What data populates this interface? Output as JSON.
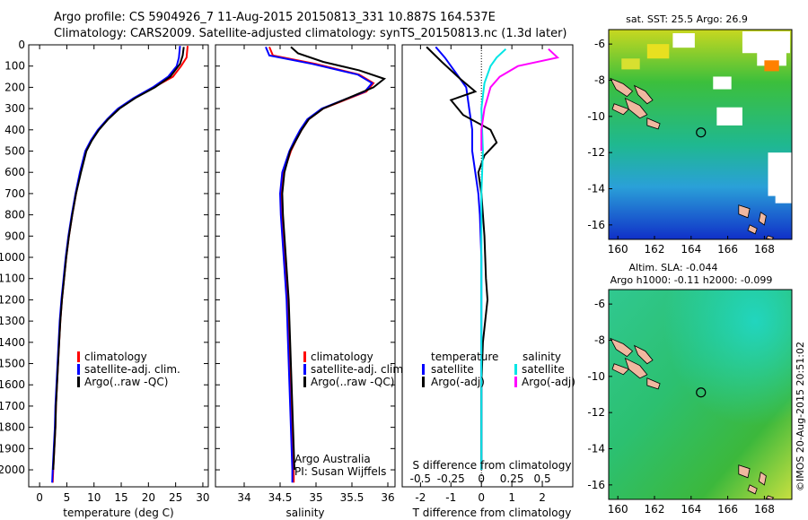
{
  "header": {
    "line1": "Argo profile: CS 5904926_7 11-Aug-2015 20150813_331 10.887S 164.537E",
    "line2": "Climatology: CARS2009. Satellite-adjusted climatology: synTS_20150813.nc (1.3d later)"
  },
  "colors": {
    "climatology": "#ff0000",
    "satellite": "#0000ff",
    "argo": "#000000",
    "sat_salinity": "#00e5e5",
    "argo_salinity": "#ff00ff",
    "coast": "#f0b8a0"
  },
  "chart_data": [
    {
      "id": "temperature",
      "type": "line",
      "xlabel": "temperature (deg C)",
      "xlim": [
        -2,
        31
      ],
      "xticks": [
        0,
        5,
        10,
        15,
        20,
        25,
        30
      ],
      "ylim": [
        2080,
        0
      ],
      "yticks": [
        0,
        100,
        200,
        300,
        400,
        500,
        600,
        700,
        800,
        900,
        1000,
        1100,
        1200,
        1300,
        1400,
        1500,
        1600,
        1700,
        1800,
        1900,
        2000
      ],
      "legend": [
        "climatology",
        "satellite-adj. clim.",
        "Argo(..raw -QC)"
      ],
      "series": [
        {
          "name": "climatology",
          "color": "#ff0000",
          "points": [
            [
              27.2,
              5
            ],
            [
              27.0,
              60
            ],
            [
              26.0,
              100
            ],
            [
              24.5,
              150
            ],
            [
              21.0,
              200
            ],
            [
              17.5,
              250
            ],
            [
              14.5,
              300
            ],
            [
              12.5,
              350
            ],
            [
              10.8,
              400
            ],
            [
              9.5,
              450
            ],
            [
              8.5,
              500
            ],
            [
              7.5,
              600
            ],
            [
              6.7,
              700
            ],
            [
              6.0,
              800
            ],
            [
              5.4,
              900
            ],
            [
              4.9,
              1000
            ],
            [
              4.5,
              1100
            ],
            [
              4.1,
              1200
            ],
            [
              3.8,
              1300
            ],
            [
              3.6,
              1400
            ],
            [
              3.4,
              1500
            ],
            [
              3.2,
              1600
            ],
            [
              3.0,
              1700
            ],
            [
              2.9,
              1800
            ],
            [
              2.7,
              1900
            ],
            [
              2.5,
              2000
            ],
            [
              2.4,
              2060
            ]
          ]
        },
        {
          "name": "satellite-adj. clim.",
          "color": "#0000ff",
          "points": [
            [
              25.8,
              5
            ],
            [
              25.6,
              60
            ],
            [
              25.2,
              100
            ],
            [
              23.6,
              150
            ],
            [
              20.8,
              200
            ],
            [
              17.3,
              250
            ],
            [
              14.4,
              300
            ],
            [
              12.4,
              350
            ],
            [
              10.7,
              400
            ],
            [
              9.4,
              450
            ],
            [
              8.4,
              500
            ],
            [
              7.4,
              600
            ],
            [
              6.6,
              700
            ],
            [
              5.9,
              800
            ],
            [
              5.3,
              900
            ],
            [
              4.8,
              1000
            ],
            [
              4.4,
              1100
            ],
            [
              4.0,
              1200
            ],
            [
              3.7,
              1300
            ],
            [
              3.5,
              1400
            ],
            [
              3.3,
              1500
            ],
            [
              3.1,
              1600
            ],
            [
              2.9,
              1700
            ],
            [
              2.8,
              1800
            ],
            [
              2.6,
              1900
            ],
            [
              2.4,
              2000
            ],
            [
              2.3,
              2060
            ]
          ]
        },
        {
          "name": "Argo(..raw -QC)",
          "color": "#000000",
          "points": [
            [
              26.5,
              10
            ],
            [
              26.3,
              50
            ],
            [
              25.8,
              90
            ],
            [
              24.0,
              150
            ],
            [
              21.2,
              200
            ],
            [
              17.6,
              250
            ],
            [
              14.7,
              300
            ],
            [
              12.6,
              350
            ],
            [
              10.9,
              400
            ],
            [
              9.6,
              450
            ],
            [
              8.6,
              500
            ],
            [
              7.6,
              600
            ],
            [
              6.7,
              700
            ],
            [
              6.0,
              800
            ],
            [
              5.4,
              900
            ],
            [
              4.9,
              1000
            ],
            [
              4.5,
              1100
            ],
            [
              4.1,
              1200
            ],
            [
              3.8,
              1300
            ],
            [
              3.6,
              1400
            ],
            [
              3.4,
              1500
            ],
            [
              3.2,
              1600
            ],
            [
              3.0,
              1700
            ],
            [
              2.9,
              1800
            ],
            [
              2.7,
              1900
            ],
            [
              2.5,
              2000
            ]
          ]
        }
      ]
    },
    {
      "id": "salinity",
      "type": "line",
      "xlabel": "salinity",
      "xlim": [
        33.6,
        36.1
      ],
      "xticks": [
        34,
        34.5,
        35,
        35.5,
        36
      ],
      "ylim": [
        2080,
        0
      ],
      "legend": [
        "climatology",
        "satellite-adj. clim.",
        "Argo(..raw -QC)"
      ],
      "annotation": [
        "Argo Australia",
        "PI: Susan Wijffels"
      ],
      "series": [
        {
          "name": "climatology",
          "color": "#ff0000",
          "points": [
            [
              34.35,
              10
            ],
            [
              34.4,
              50
            ],
            [
              35.0,
              90
            ],
            [
              35.6,
              140
            ],
            [
              35.8,
              180
            ],
            [
              35.7,
              220
            ],
            [
              35.4,
              260
            ],
            [
              35.1,
              300
            ],
            [
              34.9,
              350
            ],
            [
              34.8,
              400
            ],
            [
              34.72,
              450
            ],
            [
              34.65,
              500
            ],
            [
              34.55,
              600
            ],
            [
              34.52,
              700
            ],
            [
              34.53,
              800
            ],
            [
              34.55,
              900
            ],
            [
              34.57,
              1000
            ],
            [
              34.59,
              1100
            ],
            [
              34.61,
              1200
            ],
            [
              34.62,
              1300
            ],
            [
              34.63,
              1400
            ],
            [
              34.64,
              1500
            ],
            [
              34.65,
              1600
            ],
            [
              34.66,
              1700
            ],
            [
              34.67,
              1800
            ],
            [
              34.68,
              1900
            ],
            [
              34.69,
              2000
            ],
            [
              34.69,
              2060
            ]
          ]
        },
        {
          "name": "satellite-adj. clim.",
          "color": "#0000ff",
          "points": [
            [
              34.3,
              10
            ],
            [
              34.35,
              50
            ],
            [
              34.95,
              90
            ],
            [
              35.58,
              140
            ],
            [
              35.78,
              180
            ],
            [
              35.68,
              220
            ],
            [
              35.38,
              260
            ],
            [
              35.08,
              300
            ],
            [
              34.88,
              350
            ],
            [
              34.78,
              400
            ],
            [
              34.7,
              450
            ],
            [
              34.63,
              500
            ],
            [
              34.53,
              600
            ],
            [
              34.5,
              700
            ],
            [
              34.51,
              800
            ],
            [
              34.53,
              900
            ],
            [
              34.55,
              1000
            ],
            [
              34.57,
              1100
            ],
            [
              34.59,
              1200
            ],
            [
              34.6,
              1300
            ],
            [
              34.61,
              1400
            ],
            [
              34.62,
              1500
            ],
            [
              34.63,
              1600
            ],
            [
              34.64,
              1700
            ],
            [
              34.65,
              1800
            ],
            [
              34.66,
              1900
            ],
            [
              34.67,
              2000
            ],
            [
              34.67,
              2060
            ]
          ]
        },
        {
          "name": "Argo(..raw -QC)",
          "color": "#000000",
          "points": [
            [
              34.65,
              10
            ],
            [
              34.75,
              40
            ],
            [
              35.1,
              80
            ],
            [
              35.6,
              120
            ],
            [
              35.95,
              160
            ],
            [
              35.8,
              200
            ],
            [
              35.45,
              250
            ],
            [
              35.1,
              300
            ],
            [
              34.9,
              350
            ],
            [
              34.8,
              400
            ],
            [
              34.72,
              450
            ],
            [
              34.64,
              500
            ],
            [
              34.56,
              600
            ],
            [
              34.53,
              700
            ],
            [
              34.54,
              800
            ],
            [
              34.56,
              900
            ],
            [
              34.58,
              1000
            ],
            [
              34.6,
              1100
            ],
            [
              34.62,
              1200
            ],
            [
              34.63,
              1300
            ],
            [
              34.64,
              1400
            ],
            [
              34.65,
              1500
            ],
            [
              34.66,
              1600
            ],
            [
              34.67,
              1700
            ],
            [
              34.68,
              1800
            ],
            [
              34.69,
              1900
            ],
            [
              34.7,
              2000
            ]
          ]
        }
      ]
    },
    {
      "id": "differences",
      "type": "line",
      "xlabel": "T difference from climatology",
      "xlabel_top": "S difference from climatology",
      "xlim": [
        -2.6,
        3.0
      ],
      "xticks": [
        -2,
        -1,
        0,
        1,
        2
      ],
      "s_tick_labels": [
        "-0.5",
        "-0.25",
        "0",
        "0.25",
        "0.5"
      ],
      "ylim": [
        2080,
        0
      ],
      "legend_temperature": [
        "temperature",
        "satellite",
        "Argo(-adj)"
      ],
      "legend_salinity": [
        "salinity",
        "satellite",
        "Argo(-adj)"
      ],
      "series": [
        {
          "name": "temperature satellite",
          "color": "#0000ff",
          "points": [
            [
              -1.5,
              10
            ],
            [
              -1.2,
              60
            ],
            [
              -0.9,
              120
            ],
            [
              -0.5,
              200
            ],
            [
              -0.4,
              300
            ],
            [
              -0.3,
              400
            ],
            [
              -0.3,
              500
            ],
            [
              -0.2,
              600
            ],
            [
              -0.1,
              700
            ],
            [
              -0.05,
              800
            ],
            [
              0,
              1000
            ],
            [
              0,
              1500
            ],
            [
              0,
              2000
            ]
          ]
        },
        {
          "name": "temperature Argo(-adj)",
          "color": "#000000",
          "points": [
            [
              -1.8,
              10
            ],
            [
              -1.3,
              80
            ],
            [
              -0.7,
              160
            ],
            [
              -0.2,
              220
            ],
            [
              -1.0,
              260
            ],
            [
              -0.6,
              330
            ],
            [
              0.3,
              400
            ],
            [
              0.5,
              460
            ],
            [
              0.1,
              520
            ],
            [
              -0.1,
              600
            ],
            [
              0.0,
              700
            ],
            [
              0.1,
              900
            ],
            [
              0.15,
              1100
            ],
            [
              0.2,
              1200
            ],
            [
              0.05,
              1400
            ],
            [
              0.0,
              1600
            ],
            [
              0.0,
              2000
            ]
          ]
        },
        {
          "name": "salinity satellite",
          "color": "#00e5e5",
          "points": [
            [
              0.8,
              20
            ],
            [
              0.5,
              60
            ],
            [
              0.3,
              100
            ],
            [
              0.1,
              180
            ],
            [
              0.0,
              300
            ],
            [
              0.05,
              500
            ],
            [
              0.0,
              700
            ],
            [
              0.0,
              2000
            ]
          ]
        },
        {
          "name": "salinity Argo(-adj)",
          "color": "#ff00ff",
          "points": [
            [
              2.2,
              20
            ],
            [
              2.5,
              60
            ],
            [
              1.2,
              100
            ],
            [
              0.6,
              150
            ],
            [
              0.3,
              200
            ],
            [
              0.1,
              300
            ],
            [
              0.0,
              400
            ],
            [
              0.0,
              500
            ]
          ]
        }
      ]
    },
    {
      "id": "sst-map",
      "type": "heatmap",
      "title": "sat. SST: 25.5 Argo: 26.9",
      "xlim": [
        159.5,
        169.5
      ],
      "ylim": [
        -16.8,
        -5.2
      ],
      "xticks": [
        160,
        162,
        164,
        166,
        168
      ],
      "yticks": [
        -6,
        -8,
        -10,
        -12,
        -14,
        -16
      ],
      "marker": [
        164.537,
        -10.887
      ]
    },
    {
      "id": "sla-map",
      "type": "heatmap",
      "title": "Altim. SLA: -0.044",
      "subtitle": "Argo h1000: -0.11 h2000: -0.099",
      "xlim": [
        159.5,
        169.5
      ],
      "ylim": [
        -16.8,
        -5.2
      ],
      "xticks": [
        160,
        162,
        164,
        166,
        168
      ],
      "yticks": [
        -6,
        -8,
        -10,
        -12,
        -14,
        -16
      ],
      "marker": [
        164.537,
        -10.887
      ]
    }
  ],
  "footer_stamp": "©IMOS 20-Aug-2015 20:51:02"
}
